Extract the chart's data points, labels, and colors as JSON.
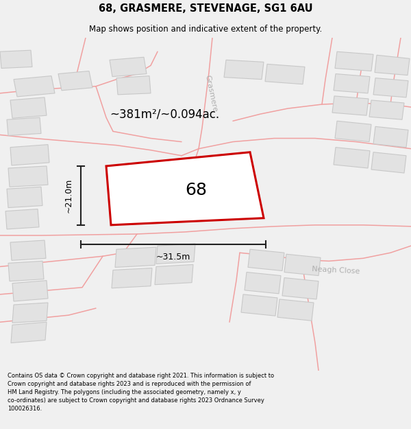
{
  "title": "68, GRASMERE, STEVENAGE, SG1 6AU",
  "subtitle": "Map shows position and indicative extent of the property.",
  "footer_line1": "Contains OS data © Crown copyright and database right 2021. This information is subject to",
  "footer_line2": "Crown copyright and database rights 2023 and is reproduced with the permission of",
  "footer_line3": "HM Land Registry. The polygons (including the associated geometry, namely x, y",
  "footer_line4": "co-ordinates) are subject to Crown copyright and database rights 2023 Ordnance Survey",
  "footer_line5": "100026316.",
  "area_label": "~381m²/~0.094ac.",
  "width_label": "~31.5m",
  "height_label": "~21.0m",
  "plot_number": "68",
  "bg_color": "#f0f0f0",
  "map_bg_color": "#ffffff",
  "building_fill": "#e2e2e2",
  "building_edge": "#c8c8c8",
  "road_color": "#f0a0a0",
  "plot_fill": "#ffffff",
  "plot_edge": "#cc0000",
  "dim_color": "#222222",
  "street_color": "#b0b0b0",
  "title_fontsize": 10.5,
  "subtitle_fontsize": 8.5,
  "area_fontsize": 12,
  "plot_num_fontsize": 18,
  "dim_fontsize": 9,
  "street_fontsize": 8,
  "footer_fontsize": 6.0
}
